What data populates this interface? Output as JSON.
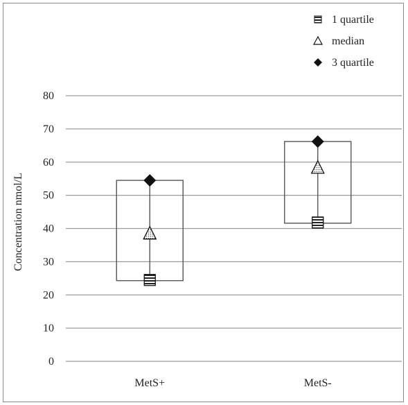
{
  "chart_data": {
    "type": "box",
    "title": "",
    "xlabel": "",
    "ylabel": "Concentration nmol/L",
    "ylim": [
      0,
      80
    ],
    "yticks": [
      0,
      10,
      20,
      30,
      40,
      50,
      60,
      70,
      80
    ],
    "categories": [
      "MetS+",
      "MetS-"
    ],
    "series": [
      {
        "name": "1 quartile",
        "marker": "square-striped",
        "values": [
          24.5,
          41.8
        ]
      },
      {
        "name": "median",
        "marker": "triangle-dotted",
        "values": [
          38.5,
          58.3
        ]
      },
      {
        "name": "3 quartile",
        "marker": "diamond",
        "values": [
          54.5,
          66.2
        ]
      }
    ],
    "boxes": [
      {
        "category": "MetS+",
        "low": 24.3,
        "high": 54.5
      },
      {
        "category": "MetS-",
        "low": 41.6,
        "high": 66.2
      }
    ],
    "grid": true,
    "legend_position": "top-right",
    "colors": {
      "gridline": "#9a9a9a",
      "box": "#555555",
      "marker": "#111111",
      "frame": "#8a8a8a"
    }
  }
}
